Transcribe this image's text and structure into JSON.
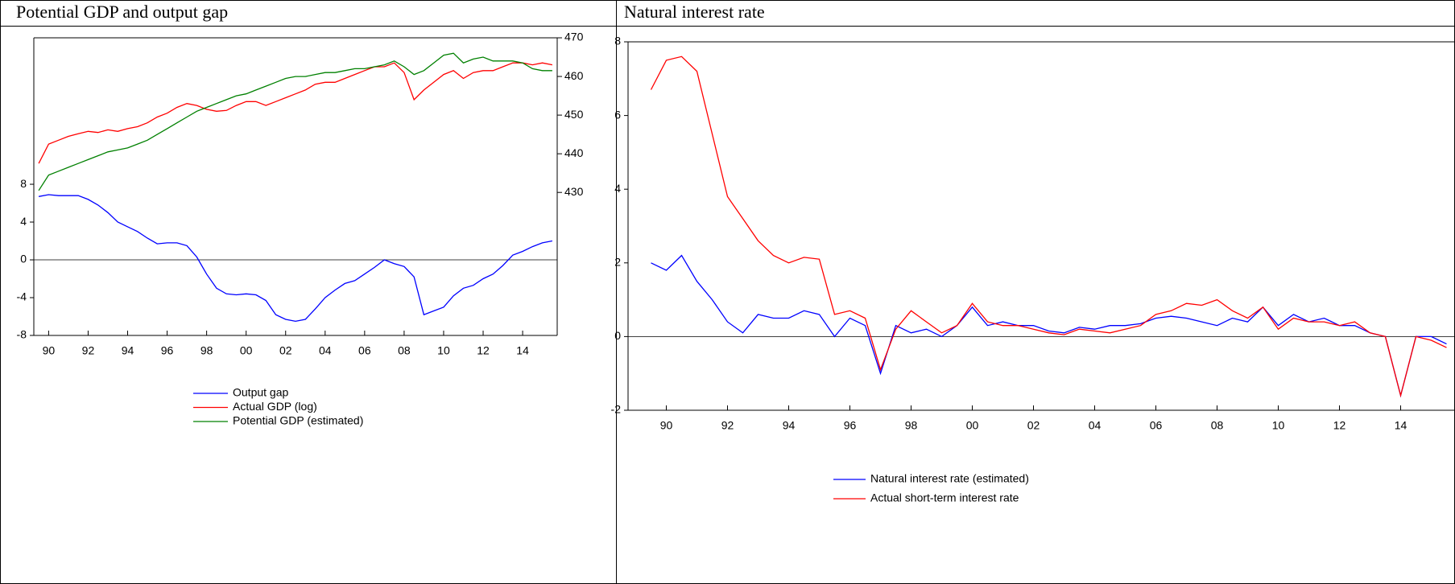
{
  "chart_data": [
    {
      "type": "line",
      "title": "Potential GDP and output gap",
      "x": [
        1989.5,
        1990,
        1990.5,
        1991,
        1991.5,
        1992,
        1992.5,
        1993,
        1993.5,
        1994,
        1994.5,
        1995,
        1995.5,
        1996,
        1996.5,
        1997,
        1997.5,
        1998,
        1998.5,
        1999,
        1999.5,
        2000,
        2000.5,
        2001,
        2001.5,
        2002,
        2002.5,
        2003,
        2003.5,
        2004,
        2004.5,
        2005,
        2005.5,
        2006,
        2006.5,
        2007,
        2007.5,
        2008,
        2008.5,
        2009,
        2009.5,
        2010,
        2010.5,
        2011,
        2011.5,
        2012,
        2012.5,
        2013,
        2013.5,
        2014,
        2014.5,
        2015,
        2015.5
      ],
      "xlim": [
        1989.25,
        2015.75
      ],
      "xticks": [
        {
          "value": 1990,
          "label": "90"
        },
        {
          "value": 1992,
          "label": "92"
        },
        {
          "value": 1994,
          "label": "94"
        },
        {
          "value": 1996,
          "label": "96"
        },
        {
          "value": 1998,
          "label": "98"
        },
        {
          "value": 2000,
          "label": "00"
        },
        {
          "value": 2002,
          "label": "02"
        },
        {
          "value": 2004,
          "label": "04"
        },
        {
          "value": 2006,
          "label": "06"
        },
        {
          "value": 2008,
          "label": "08"
        },
        {
          "value": 2010,
          "label": "10"
        },
        {
          "value": 2012,
          "label": "12"
        },
        {
          "value": 2014,
          "label": "14"
        }
      ],
      "ylim": [
        -8,
        23.5
      ],
      "yticks": [
        -8,
        -4,
        0,
        4,
        8
      ],
      "y2lim": [
        393,
        470
      ],
      "y2ticks": [
        430,
        440,
        450,
        460,
        470
      ],
      "series": [
        {
          "name": "Output gap",
          "color": "#0000ff",
          "values": [
            6.7,
            6.9,
            6.8,
            6.8,
            6.8,
            6.4,
            5.8,
            5.0,
            4.0,
            3.5,
            3.0,
            2.3,
            1.7,
            1.8,
            1.8,
            1.5,
            0.3,
            -1.5,
            -3.0,
            -3.6,
            -3.7,
            -3.6,
            -3.7,
            -4.3,
            -5.8,
            -6.3,
            -6.5,
            -6.3,
            -5.2,
            -4.0,
            -3.2,
            -2.5,
            -2.2,
            -1.5,
            -0.8,
            0.0,
            -0.4,
            -0.7,
            -1.8,
            -5.8,
            -5.4,
            -5.0,
            -3.8,
            -3.0,
            -2.7,
            -2.0,
            -1.5,
            -0.6,
            0.5,
            0.9,
            1.4,
            1.8,
            2.0
          ]
        },
        {
          "name": "Actual GDP (log)",
          "color": "#ff0000",
          "axis": "y2",
          "values": [
            437.5,
            442.5,
            443.5,
            444.5,
            445.2,
            445.8,
            445.5,
            446.2,
            445.8,
            446.5,
            447,
            448,
            449.5,
            450.5,
            452,
            453,
            452.5,
            451.5,
            451,
            451.2,
            452.5,
            453.5,
            453.5,
            452.5,
            453.5,
            454.5,
            455.5,
            456.5,
            458,
            458.5,
            458.5,
            459.5,
            460.5,
            461.5,
            462.5,
            462.5,
            463.5,
            461,
            454,
            456.5,
            458.5,
            460.5,
            461.5,
            459.5,
            461,
            461.5,
            461.5,
            462.5,
            463.5,
            463.5,
            463,
            463.5,
            463
          ]
        },
        {
          "name": "Potential GDP (estimated)",
          "color": "#008000",
          "axis": "y2",
          "values": [
            430.5,
            434.5,
            435.5,
            436.5,
            437.5,
            438.5,
            439.5,
            440.5,
            441,
            441.5,
            442.5,
            443.5,
            445,
            446.5,
            448,
            449.5,
            451,
            452,
            453,
            454,
            455,
            455.5,
            456.5,
            457.5,
            458.5,
            459.5,
            460,
            460,
            460.5,
            461,
            461,
            461.5,
            462,
            462,
            462.5,
            463,
            464,
            462.5,
            460.5,
            461.5,
            463.5,
            465.5,
            466,
            463.5,
            464.5,
            465,
            464,
            464,
            464,
            463.5,
            462,
            461.5,
            461.5
          ]
        }
      ]
    },
    {
      "type": "line",
      "title": "Natural interest rate",
      "x": [
        1989.5,
        1990,
        1990.5,
        1991,
        1991.5,
        1992,
        1992.5,
        1993,
        1993.5,
        1994,
        1994.5,
        1995,
        1995.5,
        1996,
        1996.5,
        1997,
        1997.5,
        1998,
        1998.5,
        1999,
        1999.5,
        2000,
        2000.5,
        2001,
        2001.5,
        2002,
        2002.5,
        2003,
        2003.5,
        2004,
        2004.5,
        2005,
        2005.5,
        2006,
        2006.5,
        2007,
        2007.5,
        2008,
        2008.5,
        2009,
        2009.5,
        2010,
        2010.5,
        2011,
        2011.5,
        2012,
        2012.5,
        2013,
        2013.5,
        2014,
        2014.5,
        2015,
        2015.5
      ],
      "xlim": [
        1988.75,
        2015.75
      ],
      "xticks": [
        {
          "value": 1990,
          "label": "90"
        },
        {
          "value": 1992,
          "label": "92"
        },
        {
          "value": 1994,
          "label": "94"
        },
        {
          "value": 1996,
          "label": "96"
        },
        {
          "value": 1998,
          "label": "98"
        },
        {
          "value": 2000,
          "label": "00"
        },
        {
          "value": 2002,
          "label": "02"
        },
        {
          "value": 2004,
          "label": "04"
        },
        {
          "value": 2006,
          "label": "06"
        },
        {
          "value": 2008,
          "label": "08"
        },
        {
          "value": 2010,
          "label": "10"
        },
        {
          "value": 2012,
          "label": "12"
        },
        {
          "value": 2014,
          "label": "14"
        }
      ],
      "ylim": [
        -2,
        8
      ],
      "yticks": [
        -2,
        0,
        2,
        4,
        6,
        8
      ],
      "series": [
        {
          "name": "Natural interest rate (estimated)",
          "color": "#0000ff",
          "values": [
            2.0,
            1.8,
            2.2,
            1.5,
            1.0,
            0.4,
            0.1,
            0.6,
            0.5,
            0.5,
            0.7,
            0.6,
            0.0,
            0.5,
            0.3,
            -1.0,
            0.3,
            0.1,
            0.2,
            0.0,
            0.3,
            0.8,
            0.3,
            0.4,
            0.3,
            0.3,
            0.15,
            0.1,
            0.25,
            0.2,
            0.3,
            0.3,
            0.35,
            0.5,
            0.55,
            0.5,
            0.4,
            0.3,
            0.5,
            0.4,
            0.8,
            0.3,
            0.6,
            0.4,
            0.5,
            0.3,
            0.3,
            0.1,
            0.0,
            -1.6,
            0.0,
            0.0,
            -0.2
          ]
        },
        {
          "name": "Actual short-term interest rate",
          "color": "#ff0000",
          "values": [
            6.7,
            7.5,
            7.6,
            7.2,
            5.5,
            3.8,
            3.2,
            2.6,
            2.2,
            2.0,
            2.15,
            2.1,
            0.6,
            0.7,
            0.5,
            -0.9,
            0.2,
            0.7,
            0.4,
            0.1,
            0.3,
            0.9,
            0.4,
            0.3,
            0.3,
            0.2,
            0.1,
            0.05,
            0.2,
            0.15,
            0.1,
            0.2,
            0.3,
            0.6,
            0.7,
            0.9,
            0.85,
            1.0,
            0.7,
            0.5,
            0.8,
            0.2,
            0.5,
            0.4,
            0.4,
            0.3,
            0.4,
            0.1,
            0.0,
            -1.6,
            0.0,
            -0.1,
            -0.3
          ]
        }
      ]
    }
  ]
}
